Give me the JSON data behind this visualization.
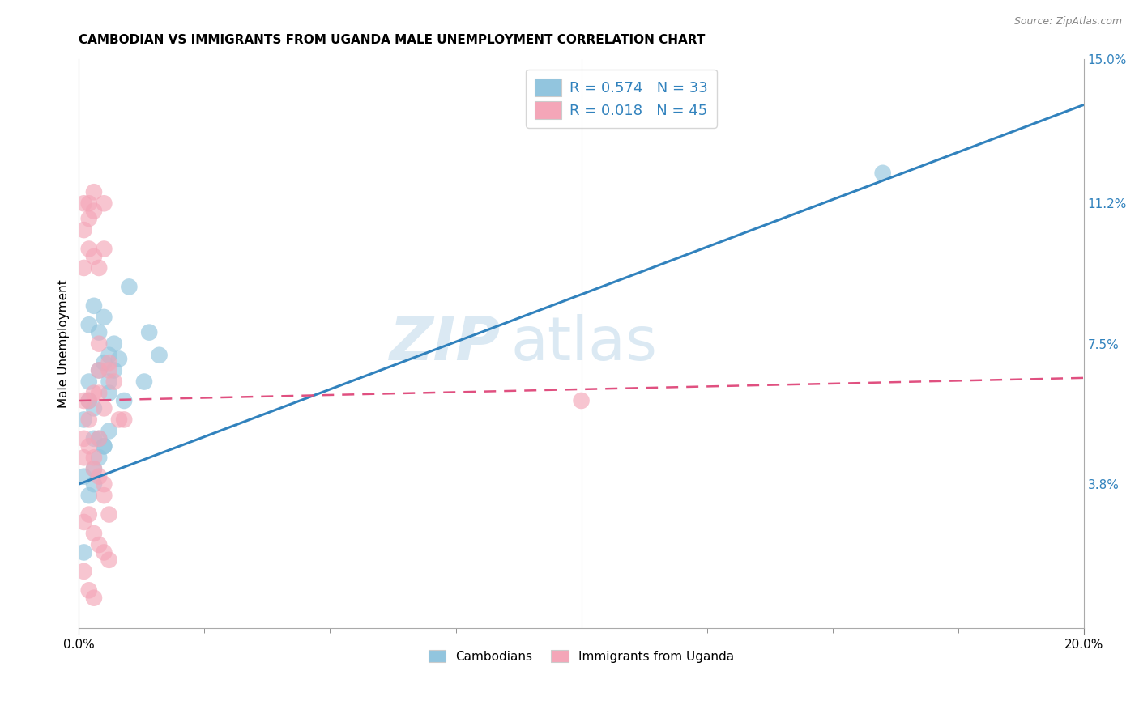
{
  "title": "CAMBODIAN VS IMMIGRANTS FROM UGANDA MALE UNEMPLOYMENT CORRELATION CHART",
  "source": "Source: ZipAtlas.com",
  "ylabel": "Male Unemployment",
  "xlim": [
    0,
    0.2
  ],
  "ylim": [
    0,
    0.15
  ],
  "xtick_labels": [
    "0.0%",
    "20.0%"
  ],
  "xtick_values": [
    0.0,
    0.2
  ],
  "xtick_minor": [
    0.025,
    0.05,
    0.075,
    0.1,
    0.125,
    0.15,
    0.175
  ],
  "ytick_labels_right": [
    "3.8%",
    "7.5%",
    "11.2%",
    "15.0%"
  ],
  "ytick_values_right": [
    0.038,
    0.075,
    0.112,
    0.15
  ],
  "watermark_zip": "ZIP",
  "watermark_atlas": "atlas",
  "legend_label_cambodian": "Cambodians",
  "legend_label_uganda": "Immigrants from Uganda",
  "blue_color": "#92c5de",
  "pink_color": "#f4a6b8",
  "blue_line_color": "#3182bd",
  "pink_line_color": "#e05080",
  "text_blue": "#3182bd",
  "background_color": "#ffffff",
  "grid_color": "#cccccc",
  "title_fontsize": 11,
  "axis_label_fontsize": 11,
  "tick_fontsize": 11,
  "blue_trend_x0": 0.0,
  "blue_trend_y0": 0.038,
  "blue_trend_x1": 0.2,
  "blue_trend_y1": 0.138,
  "pink_trend_x0": 0.0,
  "pink_trend_y0": 0.06,
  "pink_trend_x1": 0.2,
  "pink_trend_y1": 0.066,
  "cambodian_x": [
    0.001,
    0.002,
    0.003,
    0.004,
    0.004,
    0.005,
    0.005,
    0.006,
    0.006,
    0.007,
    0.007,
    0.008,
    0.009,
    0.01,
    0.013,
    0.014,
    0.016,
    0.002,
    0.003,
    0.003,
    0.004,
    0.005,
    0.006,
    0.002,
    0.003,
    0.004,
    0.005,
    0.006,
    0.001,
    0.002,
    0.003,
    0.16,
    0.001
  ],
  "cambodian_y": [
    0.055,
    0.065,
    0.058,
    0.068,
    0.05,
    0.07,
    0.048,
    0.072,
    0.065,
    0.075,
    0.068,
    0.071,
    0.06,
    0.09,
    0.065,
    0.078,
    0.072,
    0.06,
    0.042,
    0.05,
    0.045,
    0.048,
    0.052,
    0.08,
    0.085,
    0.078,
    0.082,
    0.062,
    0.02,
    0.035,
    0.038,
    0.12,
    0.04
  ],
  "uganda_x": [
    0.001,
    0.001,
    0.001,
    0.002,
    0.002,
    0.002,
    0.003,
    0.003,
    0.003,
    0.004,
    0.004,
    0.004,
    0.005,
    0.005,
    0.006,
    0.006,
    0.007,
    0.008,
    0.009,
    0.001,
    0.002,
    0.003,
    0.004,
    0.005,
    0.001,
    0.001,
    0.002,
    0.002,
    0.003,
    0.003,
    0.004,
    0.004,
    0.005,
    0.005,
    0.006,
    0.001,
    0.002,
    0.003,
    0.004,
    0.005,
    0.006,
    0.001,
    0.002,
    0.003,
    0.1
  ],
  "uganda_y": [
    0.112,
    0.105,
    0.095,
    0.112,
    0.108,
    0.1,
    0.115,
    0.11,
    0.098,
    0.095,
    0.068,
    0.075,
    0.1,
    0.112,
    0.068,
    0.07,
    0.065,
    0.055,
    0.055,
    0.06,
    0.06,
    0.062,
    0.062,
    0.058,
    0.05,
    0.045,
    0.048,
    0.055,
    0.042,
    0.045,
    0.04,
    0.05,
    0.035,
    0.038,
    0.03,
    0.028,
    0.03,
    0.025,
    0.022,
    0.02,
    0.018,
    0.015,
    0.01,
    0.008,
    0.06
  ]
}
